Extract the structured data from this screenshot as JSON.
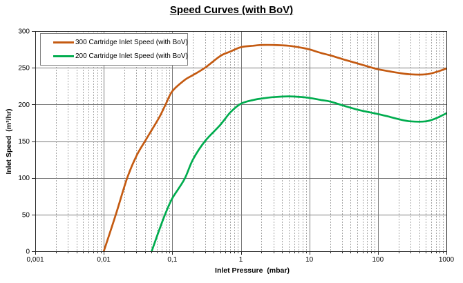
{
  "title": "Speed Curves (with BoV)",
  "colors": {
    "background": "#ffffff",
    "plot_border": "#262626",
    "grid_major": "#787878",
    "grid_minor": "#a3a3a3",
    "tick": "#262626",
    "series_300": "#C45A11",
    "series_200": "#00AC4E"
  },
  "chart_data": {
    "type": "line",
    "x_scale": "log",
    "title": "Speed Curves (with BoV)",
    "xlabel": "Inlet Pressure  (mbar)",
    "ylabel": "Inlet Speed  (m³/hr)",
    "xlim": [
      0.001,
      1000
    ],
    "ylim": [
      0,
      300
    ],
    "grid": {
      "major": true,
      "minor_vertical_dashed": true
    },
    "legend_position": "top-left",
    "x_tick_values": [
      0.001,
      0.01,
      0.1,
      1,
      10,
      100,
      1000
    ],
    "x_tick_labels": [
      "0,001",
      "0,01",
      "0,1",
      "1",
      "10",
      "100",
      "1000"
    ],
    "y_tick_values": [
      0,
      50,
      100,
      150,
      200,
      250,
      300
    ],
    "y_tick_labels": [
      "0",
      "50",
      "100",
      "150",
      "200",
      "250",
      "300"
    ],
    "series": [
      {
        "name": "300 Cartridge Inlet Speed (with BoV)",
        "color": "#C45A11",
        "x": [
          0.01,
          0.015,
          0.022,
          0.03,
          0.04,
          0.05,
          0.065,
          0.08,
          0.1,
          0.15,
          0.2,
          0.3,
          0.5,
          0.7,
          1,
          1.5,
          2,
          3,
          5,
          8,
          10,
          15,
          20,
          30,
          50,
          70,
          100,
          150,
          200,
          300,
          500,
          700,
          1000
        ],
        "y": [
          0,
          50,
          100,
          130,
          150,
          165,
          183,
          200,
          218,
          233,
          240,
          250,
          266,
          272,
          278,
          280,
          281,
          281,
          280,
          277,
          275,
          270,
          267,
          262,
          256,
          252,
          248,
          245,
          243,
          241,
          241,
          244,
          249
        ]
      },
      {
        "name": "200 Cartridge Inlet Speed (with BoV)",
        "color": "#00AC4E",
        "x": [
          0.05,
          0.065,
          0.08,
          0.1,
          0.15,
          0.2,
          0.3,
          0.5,
          0.7,
          1,
          1.5,
          2,
          3,
          5,
          8,
          10,
          15,
          20,
          30,
          50,
          70,
          100,
          150,
          200,
          300,
          500,
          700,
          1000
        ],
        "y": [
          0,
          30,
          52,
          72,
          98,
          125,
          150,
          172,
          189,
          201,
          206,
          208,
          210,
          211,
          210,
          209,
          206,
          204,
          199,
          193,
          190,
          187,
          183,
          180,
          177,
          177,
          181,
          188
        ]
      }
    ]
  }
}
